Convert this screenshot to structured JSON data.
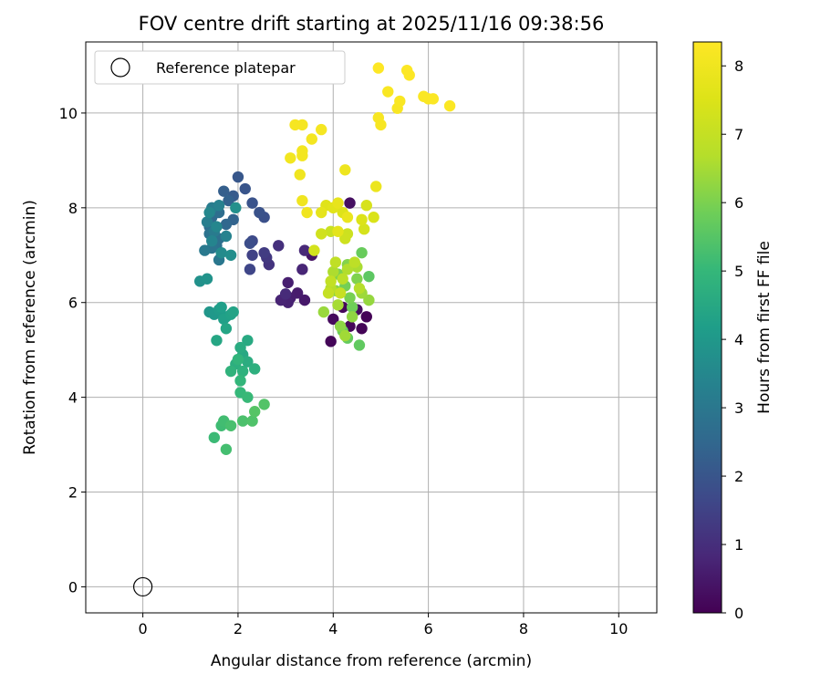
{
  "chart_data": {
    "type": "scatter",
    "title": "FOV centre drift starting at 2025/11/16 09:38:56",
    "xlabel": "Angular distance from reference (arcmin)",
    "ylabel": "Rotation from reference (arcmin)",
    "xlim": [
      -1.2,
      10.8
    ],
    "ylim": [
      -0.55,
      11.5
    ],
    "xticks": [
      0,
      2,
      4,
      6,
      8,
      10
    ],
    "yticks": [
      0,
      2,
      4,
      6,
      8,
      10
    ],
    "grid": true,
    "legend": {
      "label": "Reference platepar",
      "position": "top-left"
    },
    "reference_point": {
      "x": 0,
      "y": 0
    },
    "colorbar": {
      "label": "Hours from first FF file",
      "colormap": "viridis",
      "range": [
        0,
        8.35
      ],
      "ticks": [
        0,
        1,
        2,
        3,
        4,
        5,
        6,
        7,
        8
      ]
    },
    "points": [
      [
        4.7,
        5.7,
        0.05
      ],
      [
        4.6,
        5.45,
        0.08
      ],
      [
        3.95,
        5.18,
        0.1
      ],
      [
        4.35,
        5.5,
        0.12
      ],
      [
        4.2,
        5.9,
        0.15
      ],
      [
        4.0,
        5.65,
        0.2
      ],
      [
        4.5,
        5.85,
        0.25
      ],
      [
        4.35,
        8.1,
        0.3
      ],
      [
        3.55,
        7.0,
        0.4
      ],
      [
        3.4,
        6.05,
        0.5
      ],
      [
        3.25,
        6.2,
        0.55
      ],
      [
        3.1,
        6.1,
        0.6
      ],
      [
        3.05,
        6.42,
        0.65
      ],
      [
        3.05,
        6.0,
        0.7
      ],
      [
        2.9,
        6.05,
        0.75
      ],
      [
        3.35,
        6.7,
        0.8
      ],
      [
        3.4,
        7.1,
        0.85
      ],
      [
        3.0,
        6.18,
        0.9
      ],
      [
        2.85,
        7.2,
        1.05
      ],
      [
        2.65,
        6.8,
        1.15
      ],
      [
        2.6,
        6.95,
        1.25
      ],
      [
        2.55,
        7.05,
        1.35
      ],
      [
        2.3,
        7.0,
        1.5
      ],
      [
        2.25,
        6.7,
        1.6
      ],
      [
        2.3,
        7.3,
        1.7
      ],
      [
        2.25,
        7.25,
        1.8
      ],
      [
        2.55,
        7.8,
        1.85
      ],
      [
        2.45,
        7.9,
        1.9
      ],
      [
        2.3,
        8.1,
        1.95
      ],
      [
        2.15,
        8.4,
        2.0
      ],
      [
        2.0,
        8.65,
        2.05
      ],
      [
        1.9,
        8.25,
        2.15
      ],
      [
        1.7,
        8.35,
        2.25
      ],
      [
        1.8,
        8.15,
        2.35
      ],
      [
        1.9,
        7.75,
        2.4
      ],
      [
        1.75,
        7.65,
        2.5
      ],
      [
        1.55,
        7.95,
        2.55
      ],
      [
        1.45,
        7.8,
        2.6
      ],
      [
        1.4,
        7.6,
        2.65
      ],
      [
        1.6,
        7.9,
        2.7
      ],
      [
        1.6,
        7.35,
        2.75
      ],
      [
        1.55,
        7.2,
        2.8
      ],
      [
        1.4,
        7.45,
        2.85
      ],
      [
        1.45,
        7.15,
        2.9
      ],
      [
        1.6,
        6.9,
        3.0
      ],
      [
        1.3,
        7.1,
        3.05
      ],
      [
        1.5,
        7.5,
        3.1
      ],
      [
        1.45,
        8.0,
        3.15
      ],
      [
        1.35,
        7.7,
        3.2
      ],
      [
        1.6,
        8.05,
        3.3
      ],
      [
        1.75,
        7.4,
        3.35
      ],
      [
        1.45,
        7.3,
        3.4
      ],
      [
        1.55,
        7.6,
        3.45
      ],
      [
        1.4,
        7.9,
        3.5
      ],
      [
        1.65,
        7.05,
        3.6
      ],
      [
        1.85,
        7.0,
        3.7
      ],
      [
        1.95,
        8.0,
        3.75
      ],
      [
        1.2,
        6.45,
        3.8
      ],
      [
        1.35,
        6.5,
        3.85
      ],
      [
        1.4,
        5.8,
        3.95
      ],
      [
        1.5,
        5.75,
        4.0
      ],
      [
        1.6,
        5.85,
        4.1
      ],
      [
        1.75,
        5.7,
        4.15
      ],
      [
        1.65,
        5.9,
        4.2
      ],
      [
        1.7,
        5.65,
        4.25
      ],
      [
        1.85,
        5.75,
        4.3
      ],
      [
        1.9,
        5.8,
        4.35
      ],
      [
        1.75,
        5.45,
        4.4
      ],
      [
        1.55,
        5.2,
        4.45
      ],
      [
        2.1,
        4.9,
        4.5
      ],
      [
        2.2,
        5.2,
        4.55
      ],
      [
        2.05,
        5.05,
        4.6
      ],
      [
        2.2,
        4.75,
        4.65
      ],
      [
        1.95,
        4.7,
        4.7
      ],
      [
        2.35,
        4.6,
        4.75
      ],
      [
        2.1,
        4.55,
        4.8
      ],
      [
        1.85,
        4.55,
        4.85
      ],
      [
        2.0,
        4.8,
        4.9
      ],
      [
        2.05,
        4.35,
        4.95
      ],
      [
        2.05,
        4.1,
        5.0
      ],
      [
        2.2,
        4.0,
        5.05
      ],
      [
        1.5,
        3.15,
        5.1
      ],
      [
        1.65,
        3.4,
        5.15
      ],
      [
        1.7,
        3.5,
        5.2
      ],
      [
        1.75,
        2.9,
        5.25
      ],
      [
        1.85,
        3.4,
        5.3
      ],
      [
        2.1,
        3.5,
        5.35
      ],
      [
        2.3,
        3.5,
        5.4
      ],
      [
        2.55,
        3.85,
        5.45
      ],
      [
        2.35,
        3.7,
        5.5
      ],
      [
        4.75,
        6.55,
        5.6
      ],
      [
        4.55,
        5.1,
        5.65
      ],
      [
        4.3,
        5.25,
        5.7
      ],
      [
        4.6,
        7.05,
        5.75
      ],
      [
        4.2,
        5.4,
        5.8
      ],
      [
        4.4,
        5.9,
        5.85
      ],
      [
        4.25,
        6.35,
        5.9
      ],
      [
        4.35,
        6.1,
        5.95
      ],
      [
        4.1,
        6.6,
        6.0
      ],
      [
        4.5,
        6.5,
        6.05
      ],
      [
        4.3,
        6.8,
        6.1
      ],
      [
        4.05,
        6.25,
        6.15
      ],
      [
        4.15,
        5.5,
        6.2
      ],
      [
        4.4,
        5.7,
        6.25
      ],
      [
        4.75,
        6.05,
        6.3
      ],
      [
        3.8,
        5.8,
        6.35
      ],
      [
        4.6,
        6.2,
        6.4
      ],
      [
        4.25,
        5.3,
        6.45
      ],
      [
        4.1,
        5.95,
        6.5
      ],
      [
        4.5,
        6.75,
        6.55
      ],
      [
        4.0,
        6.65,
        6.6
      ],
      [
        4.3,
        6.7,
        6.65
      ],
      [
        4.55,
        6.3,
        6.7
      ],
      [
        3.95,
        6.3,
        6.75
      ],
      [
        4.2,
        6.5,
        6.8
      ],
      [
        4.45,
        6.85,
        6.85
      ],
      [
        4.05,
        6.85,
        6.9
      ],
      [
        3.95,
        6.45,
        6.95
      ],
      [
        3.9,
        6.2,
        7.0
      ],
      [
        4.15,
        6.2,
        7.05
      ],
      [
        3.95,
        7.5,
        7.1
      ],
      [
        4.3,
        7.45,
        7.15
      ],
      [
        4.25,
        7.35,
        7.2
      ],
      [
        3.75,
        7.45,
        7.25
      ],
      [
        3.6,
        7.1,
        7.3
      ],
      [
        4.65,
        7.55,
        7.35
      ],
      [
        4.7,
        8.05,
        7.4
      ],
      [
        4.85,
        7.8,
        7.45
      ],
      [
        4.6,
        7.75,
        7.5
      ],
      [
        4.2,
        7.9,
        7.55
      ],
      [
        3.85,
        8.05,
        7.6
      ],
      [
        4.0,
        8.0,
        7.65
      ],
      [
        4.1,
        7.5,
        7.7
      ],
      [
        3.75,
        7.9,
        7.75
      ],
      [
        4.1,
        8.1,
        7.8
      ],
      [
        4.3,
        7.8,
        7.85
      ],
      [
        4.9,
        8.45,
        7.9
      ],
      [
        4.25,
        8.8,
        7.95
      ],
      [
        3.45,
        7.9,
        8.0
      ],
      [
        3.35,
        8.15,
        8.0
      ],
      [
        3.3,
        8.7,
        8.02
      ],
      [
        3.1,
        9.05,
        8.05
      ],
      [
        3.35,
        9.1,
        8.08
      ],
      [
        3.35,
        9.2,
        8.1
      ],
      [
        3.55,
        9.45,
        8.12
      ],
      [
        3.75,
        9.65,
        8.15
      ],
      [
        3.35,
        9.75,
        8.15
      ],
      [
        3.2,
        9.75,
        8.18
      ],
      [
        5.0,
        9.75,
        8.2
      ],
      [
        4.95,
        9.9,
        8.2
      ],
      [
        5.35,
        10.1,
        8.22
      ],
      [
        5.4,
        10.25,
        8.25
      ],
      [
        5.15,
        10.45,
        8.25
      ],
      [
        5.9,
        10.35,
        8.28
      ],
      [
        6.0,
        10.3,
        8.28
      ],
      [
        6.1,
        10.3,
        8.3
      ],
      [
        6.45,
        10.15,
        8.3
      ],
      [
        5.6,
        10.8,
        8.32
      ],
      [
        5.55,
        10.9,
        8.33
      ],
      [
        4.95,
        10.95,
        8.35
      ]
    ]
  }
}
